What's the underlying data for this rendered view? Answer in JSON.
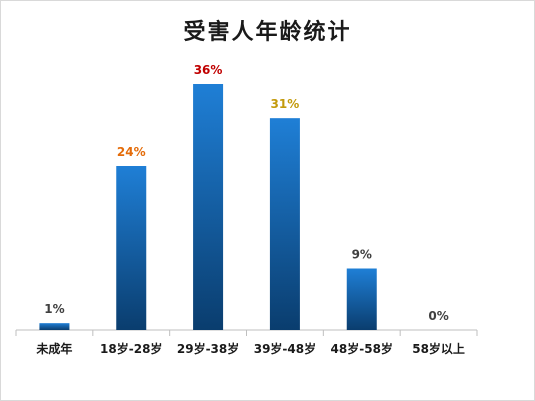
{
  "chart_data": {
    "type": "bar",
    "title": "受害人年龄统计",
    "categories": [
      "未成年",
      "18岁-28岁",
      "29岁-38岁",
      "39岁-48岁",
      "48岁-58岁",
      "58岁以上"
    ],
    "values": [
      1,
      24,
      36,
      31,
      9,
      0
    ],
    "value_labels": [
      "1%",
      "24%",
      "36%",
      "31%",
      "9%",
      "0%"
    ],
    "label_colors": [
      "#404040",
      "#e46c0a",
      "#c00000",
      "#c39a0c",
      "#404040",
      "#404040"
    ],
    "bar_color_top": "#1f7fd6",
    "bar_color_bottom": "#0a3d6e",
    "ylim": [
      0,
      36
    ],
    "grid": false,
    "legend": "none"
  }
}
